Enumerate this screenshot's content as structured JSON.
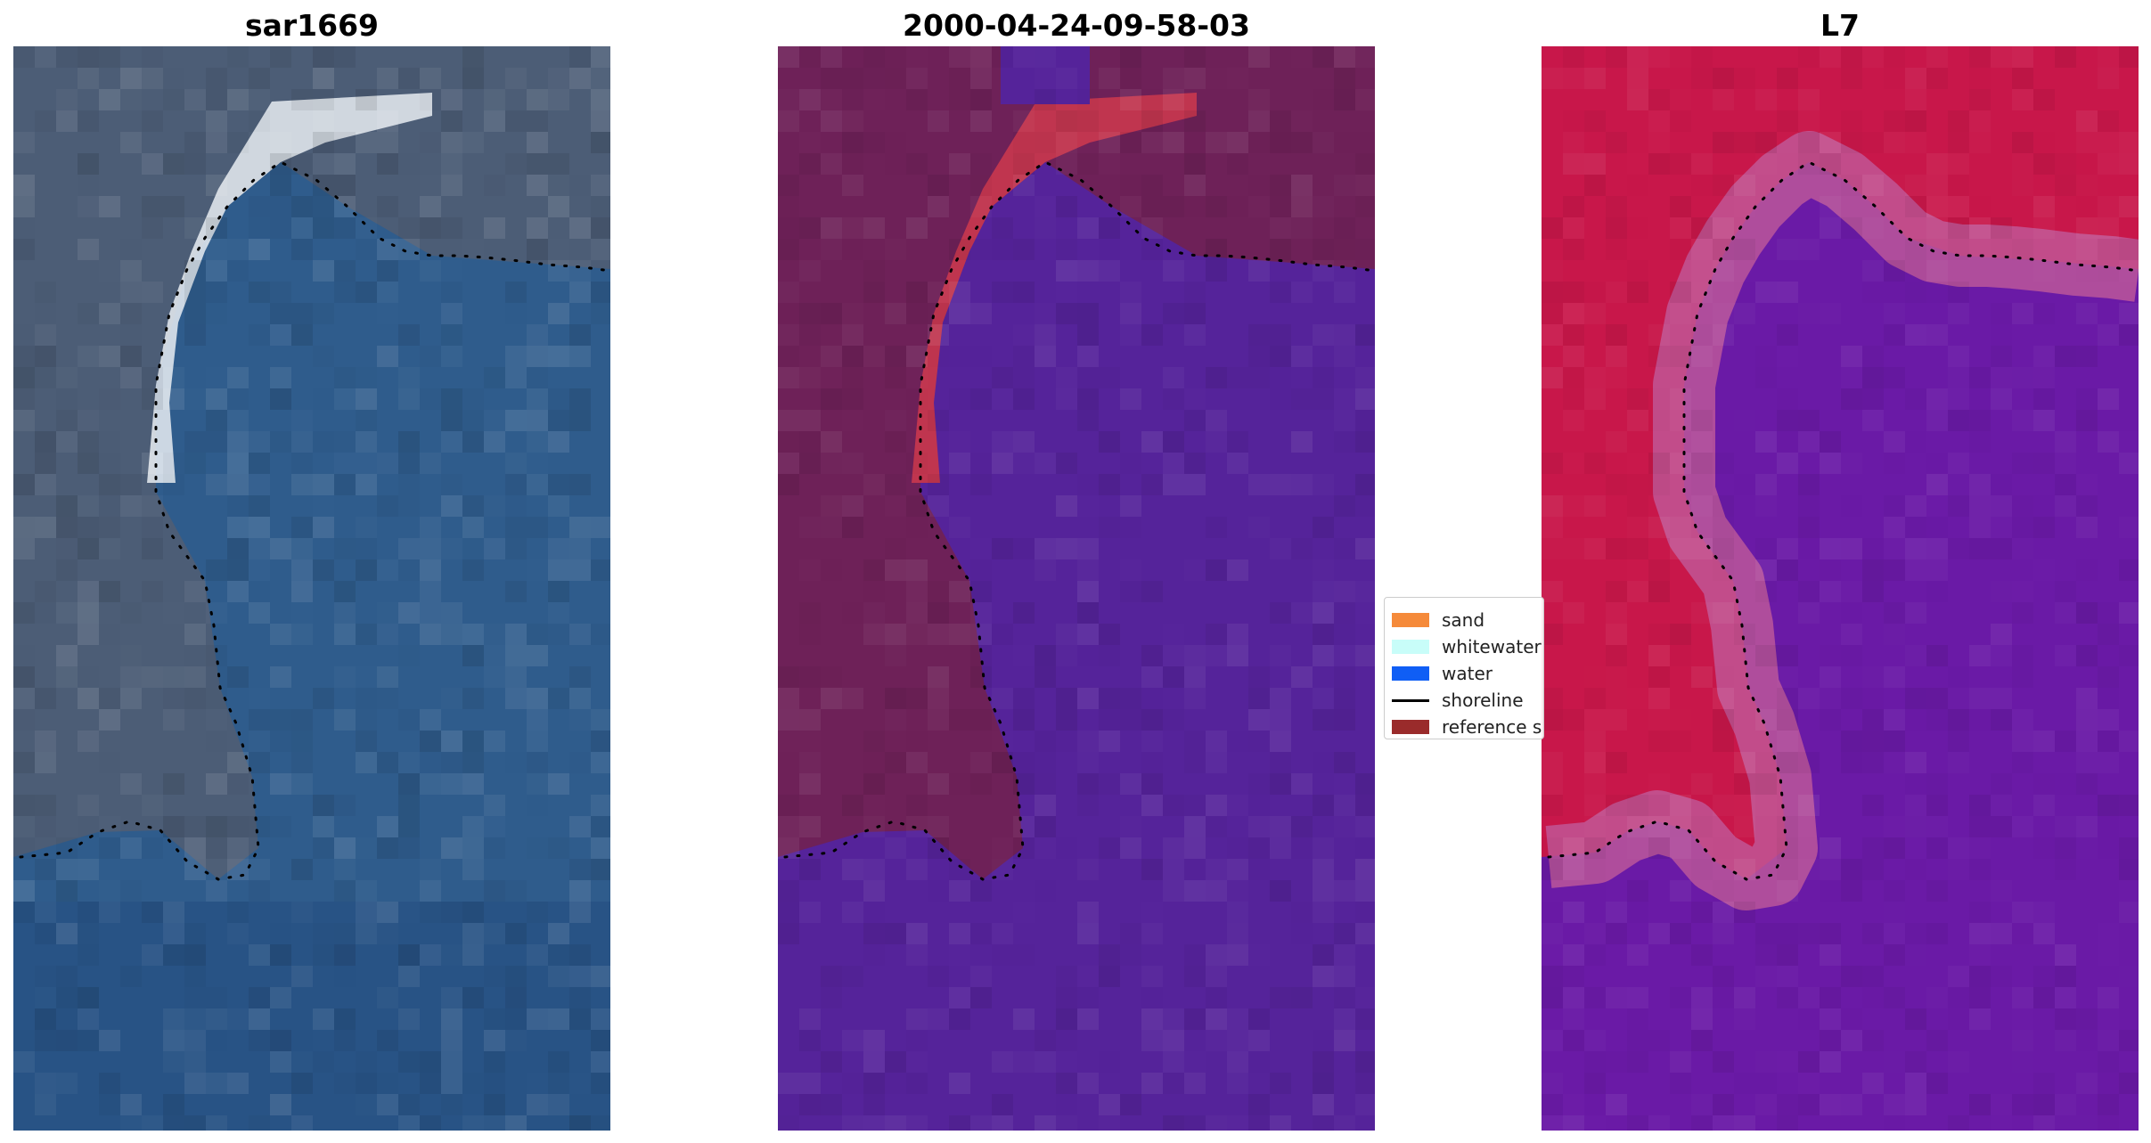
{
  "panels": [
    {
      "title": "sar1669",
      "kind": "rgb"
    },
    {
      "title": "2000-04-24-09-58-03",
      "kind": "classified"
    },
    {
      "title": "L7",
      "kind": "index"
    }
  ],
  "legend": {
    "items": [
      {
        "label": "sand",
        "color": "#f58a3a",
        "type": "patch"
      },
      {
        "label": "whitewater",
        "color": "#c8fdf9",
        "type": "patch"
      },
      {
        "label": "water",
        "color": "#0f5ef5",
        "type": "patch"
      },
      {
        "label": "shoreline",
        "color": "#000000",
        "type": "line"
      },
      {
        "label": "reference shoreline",
        "color": "#9a2b2b",
        "type": "patch"
      }
    ]
  },
  "colors": {
    "rgb_water": "#2f5c8c",
    "rgb_land": "#4c5d76",
    "rgb_whitewater": "#e8ecf2",
    "class_land": "#6e2158",
    "class_water": "#55239a",
    "class_sand": "#c0354f",
    "index_land": "#c8174a",
    "index_water": "#6a1aa6",
    "index_edge": "#c05a9a"
  }
}
